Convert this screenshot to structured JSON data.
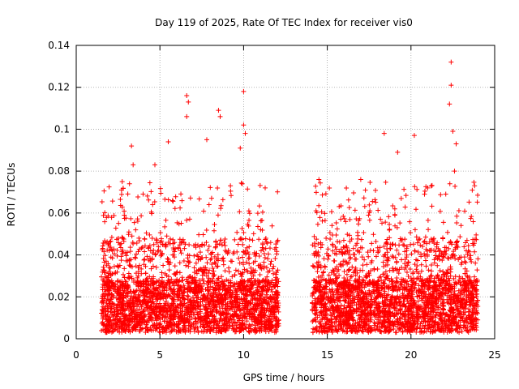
{
  "chart_data": {
    "type": "scatter",
    "title": "Day 119 of 2025, Rate Of TEC Index for receiver vis0",
    "xlabel": "GPS time / hours",
    "ylabel": "ROTI / TECUs",
    "xlim": [
      0,
      25
    ],
    "ylim": [
      0,
      0.14
    ],
    "x_ticks": [
      "0",
      "5",
      "10",
      "15",
      "20",
      "25"
    ],
    "y_ticks": [
      "0",
      "0.02",
      "0.04",
      "0.06",
      "0.08",
      "0.1",
      "0.12",
      "0.14"
    ],
    "grid": true,
    "marker": "+",
    "series": [
      {
        "name": "vis0",
        "color": "#ff0000",
        "segments": [
          {
            "x_start": 1.5,
            "x_end": 12.1
          },
          {
            "x_start": 14.1,
            "x_end": 24.0
          }
        ],
        "points": [
          {
            "x": 3.3,
            "y": 0.092
          },
          {
            "x": 3.4,
            "y": 0.083
          },
          {
            "x": 4.7,
            "y": 0.083
          },
          {
            "x": 5.5,
            "y": 0.094
          },
          {
            "x": 6.6,
            "y": 0.116
          },
          {
            "x": 6.7,
            "y": 0.113
          },
          {
            "x": 6.6,
            "y": 0.106
          },
          {
            "x": 7.8,
            "y": 0.095
          },
          {
            "x": 8.5,
            "y": 0.109
          },
          {
            "x": 8.6,
            "y": 0.106
          },
          {
            "x": 10.0,
            "y": 0.118
          },
          {
            "x": 10.0,
            "y": 0.102
          },
          {
            "x": 10.1,
            "y": 0.098
          },
          {
            "x": 9.8,
            "y": 0.091
          },
          {
            "x": 18.4,
            "y": 0.098
          },
          {
            "x": 19.2,
            "y": 0.089
          },
          {
            "x": 20.2,
            "y": 0.097
          },
          {
            "x": 22.4,
            "y": 0.132
          },
          {
            "x": 22.4,
            "y": 0.121
          },
          {
            "x": 22.3,
            "y": 0.112
          },
          {
            "x": 22.5,
            "y": 0.099
          },
          {
            "x": 22.7,
            "y": 0.093
          },
          {
            "x": 22.6,
            "y": 0.08
          },
          {
            "x": 23.8,
            "y": 0.073
          },
          {
            "x": 14.5,
            "y": 0.076
          },
          {
            "x": 17.0,
            "y": 0.076
          },
          {
            "x": 21.0,
            "y": 0.072
          }
        ]
      }
    ]
  }
}
